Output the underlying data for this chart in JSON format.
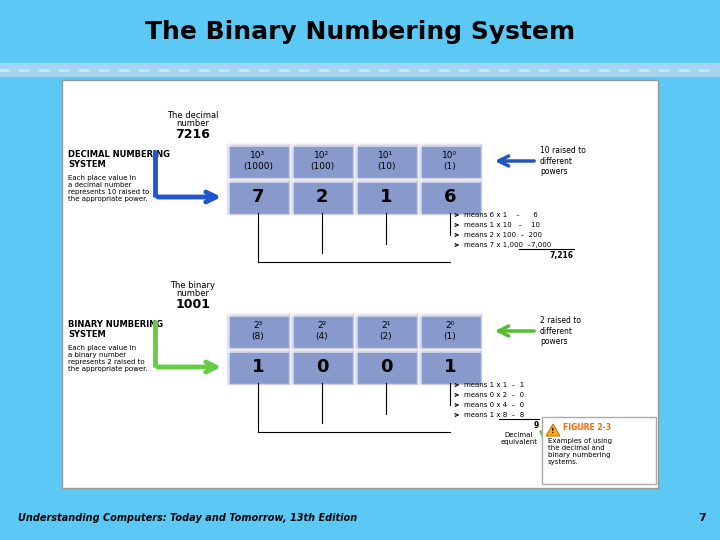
{
  "title": "The Binary Numbering System",
  "title_fontsize": 18,
  "bg_color_top": "#5BC8F5",
  "footer_text": "Understanding Computers: Today and Tomorrow, 13th Edition",
  "footer_page": "7",
  "decimal_number": "7216",
  "decimal_label1": "The decimal",
  "decimal_label2": "number",
  "binary_number": "1001",
  "binary_label1": "The binary",
  "binary_label2": "number",
  "decimal_powers": [
    "10³\n(1000)",
    "10²\n(100)",
    "10¹\n(10)",
    "10⁰\n(1)"
  ],
  "decimal_digits": [
    "7",
    "2",
    "1",
    "6"
  ],
  "binary_powers": [
    "2³\n(8)",
    "2²\n(4)",
    "2¹\n(2)",
    "2⁰\n(1)"
  ],
  "binary_digits": [
    "1",
    "0",
    "0",
    "1"
  ],
  "cell_color": "#8899CC",
  "decimal_arrow_color": "#2255CC",
  "binary_arrow_color": "#66CC44",
  "decimal_means": [
    "means 6 x 1    –      6",
    "means 1 x 10   –    10",
    "means 2 x 100  –  200",
    "means 7 x 1,000  –7,000"
  ],
  "decimal_total": "7,216",
  "binary_means": [
    "means 1 x 1  –  1",
    "means 0 x 2  –  0",
    "means 0 x 4  –  0",
    "means 1 x 8  –  8"
  ],
  "binary_total": "9",
  "decimal_right_label": "10 raised to\ndifferent\npowers",
  "binary_right_label": "2 raised to\ndifferent\npowers",
  "decimal_system_title": "DECIMAL NUMBERING\nSYSTEM",
  "decimal_system_desc": "Each place value in\na decimal number\nrepresents 10 raised to\nthe appropriate power.",
  "binary_system_title": "BINARY NUMBERING\nSYSTEM",
  "binary_system_desc": "Each place value in\na binary number\nrepresents 2 raised to\nthe appropriate power.",
  "figure_label": "FIGURE 2-3",
  "figure_desc": "Examples of using\nthe decimal and\nbinary numbering\nsystems.",
  "decimal_equivalent_label": "Decimal\nequivalent"
}
